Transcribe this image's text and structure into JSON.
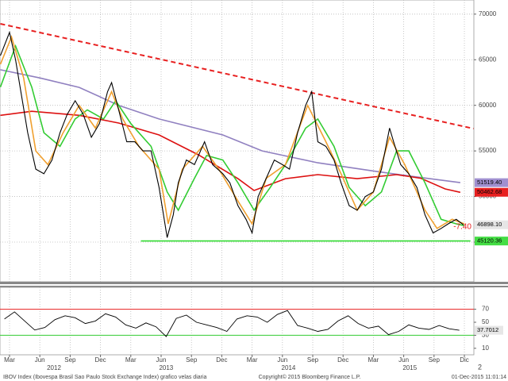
{
  "chart_data": {
    "type": "line",
    "xlim": [
      1.06,
      47.94
    ],
    "xticks": [
      {
        "value": 2,
        "label": "Mar"
      },
      {
        "value": 5,
        "label": "Jun"
      },
      {
        "value": 8,
        "label": "Sep"
      },
      {
        "value": 11,
        "label": "Dec"
      },
      {
        "value": 14,
        "label": "Mar"
      },
      {
        "value": 17,
        "label": "Jun"
      },
      {
        "value": 20,
        "label": "Sep"
      },
      {
        "value": 23,
        "label": "Dec"
      },
      {
        "value": 26,
        "label": "Mar"
      },
      {
        "value": 29,
        "label": "Jun"
      },
      {
        "value": 32,
        "label": "Sep"
      },
      {
        "value": 35,
        "label": "Dec"
      },
      {
        "value": 38,
        "label": "Mar"
      },
      {
        "value": 41,
        "label": "Jun"
      },
      {
        "value": 44,
        "label": "Sep"
      },
      {
        "value": 47,
        "label": "Dic"
      }
    ],
    "years": [
      {
        "value": 6.4,
        "label": "2012"
      },
      {
        "value": 17.5,
        "label": "2013"
      },
      {
        "value": 29.6,
        "label": "2014"
      },
      {
        "value": 41.6,
        "label": "2015"
      }
    ],
    "ylim": [
      40650,
      71550
    ],
    "yticks": [
      45000,
      50000,
      55000,
      60000,
      65000,
      70000
    ],
    "grid": true,
    "series": [
      {
        "color": "#000000",
        "x": [
          1.1,
          2.0,
          2.6,
          3.8,
          4.6,
          5.4,
          6.2,
          7.0,
          7.7,
          8.5,
          9.3,
          10.1,
          10.9,
          11.7,
          12.1,
          12.8,
          13.6,
          14.4,
          15.2,
          16.0,
          16.8,
          17.6,
          18.2,
          18.7,
          19.5,
          20.3,
          21.3,
          22.1,
          23.1,
          23.8,
          24.6,
          25.4,
          26.0,
          26.6,
          27.4,
          28.2,
          29.0,
          29.7,
          30.5,
          31.3,
          31.9,
          32.5,
          33.3,
          34.1,
          34.8,
          35.6,
          36.4,
          37.2,
          38.0,
          38.8,
          39.6,
          40.0,
          40.7,
          41.5,
          42.3,
          43.1,
          43.9,
          44.7,
          45.4,
          46.2,
          46.9
        ],
        "values": [
          65450,
          68000,
          65000,
          57000,
          53000,
          52500,
          54000,
          57000,
          59000,
          60500,
          59000,
          56500,
          58000,
          61500,
          62500,
          59500,
          56000,
          56000,
          55000,
          55000,
          51000,
          45500,
          48000,
          51500,
          54000,
          53500,
          56000,
          53500,
          52500,
          51500,
          49000,
          47500,
          46000,
          50000,
          52000,
          54000,
          53500,
          53000,
          57000,
          60000,
          61500,
          56000,
          55500,
          54000,
          51500,
          49000,
          48500,
          50000,
          50500,
          53000,
          57500,
          56000,
          53500,
          52500,
          51000,
          48000,
          46000,
          46500,
          47000,
          47500,
          46898.1
        ]
      },
      {
        "color": "#f0a030",
        "x": [
          1.1,
          2.2,
          3.4,
          4.6,
          5.8,
          7.3,
          8.9,
          10.5,
          12.1,
          13.2,
          14.8,
          16.8,
          17.7,
          19.1,
          21.1,
          22.7,
          24.6,
          26.0,
          27.4,
          29.3,
          31.5,
          33.3,
          34.8,
          36.4,
          38.0,
          39.6,
          41.1,
          43.1,
          44.3,
          45.8,
          47.0
        ],
        "values": [
          64500,
          67500,
          63000,
          55000,
          53500,
          57000,
          60000,
          57500,
          61500,
          58500,
          55500,
          53000,
          47000,
          53000,
          55500,
          53000,
          49500,
          47000,
          52000,
          53500,
          60000,
          56000,
          52500,
          48500,
          50500,
          56500,
          53500,
          48500,
          46500,
          47500,
          47000
        ]
      },
      {
        "color": "#33cc33",
        "x": [
          1.1,
          2.6,
          4.2,
          5.4,
          7.0,
          8.5,
          9.7,
          11.3,
          12.5,
          14.0,
          16.0,
          17.6,
          18.7,
          20.3,
          21.5,
          23.1,
          24.6,
          26.2,
          27.8,
          29.3,
          31.3,
          32.5,
          34.1,
          35.6,
          37.2,
          38.8,
          40.3,
          41.5,
          43.1,
          44.7,
          46.2,
          47.0
        ],
        "values": [
          62000,
          66500,
          62000,
          57000,
          55500,
          58500,
          59500,
          58500,
          60500,
          58000,
          55500,
          50500,
          48500,
          52000,
          54500,
          54000,
          51500,
          48500,
          51000,
          53500,
          57500,
          58500,
          55500,
          51000,
          49000,
          50500,
          55000,
          55000,
          51500,
          47500,
          47000,
          46800
        ]
      },
      {
        "color": "#dd1111",
        "x": [
          1.1,
          4.2,
          8.9,
          12.8,
          16.8,
          20.7,
          24.6,
          26.2,
          29.3,
          32.5,
          36.4,
          40.3,
          42.7,
          45.1,
          46.6
        ],
        "values": [
          58900,
          59350,
          58900,
          58060,
          56750,
          54570,
          51960,
          50660,
          51960,
          52400,
          51960,
          52400,
          52000,
          50830,
          50462.68
        ]
      },
      {
        "color": "#9080c0",
        "x": [
          1.1,
          5.0,
          8.9,
          12.8,
          16.8,
          23.1,
          27.0,
          32.5,
          38.0,
          41.9,
          46.6
        ],
        "values": [
          63900,
          63000,
          61970,
          60000,
          58500,
          56750,
          55000,
          53700,
          52800,
          52200,
          51519.4
        ]
      }
    ],
    "trendlines": [
      {
        "color": "#e82020",
        "dashed": true,
        "x": [
          1.1,
          47.9
        ],
        "values": [
          68940,
          57450
        ]
      },
      {
        "color": "#33dd33",
        "dashed": false,
        "x": [
          15.0,
          47.6
        ],
        "values": [
          45120.36,
          45120.36
        ]
      }
    ],
    "price_labels": [
      {
        "value": 51519.4,
        "label": "51519.40",
        "color": "#a090d0"
      },
      {
        "value": 50462.68,
        "label": "50462.68",
        "color": "#e82020"
      },
      {
        "value": 46898.1,
        "label": "46898.10",
        "color": "#e6e6e6"
      },
      {
        "value": 45120.36,
        "label": "45120.36",
        "color": "#44dd44"
      }
    ],
    "change_label": {
      "value": -7.4,
      "label": "-7.40"
    },
    "rsi": {
      "ylim": [
        0,
        100
      ],
      "yticks": [
        10,
        30,
        50,
        70
      ],
      "levels": [
        {
          "value": 70,
          "color": "#e82020"
        },
        {
          "value": 30,
          "color": "#33cc33"
        }
      ],
      "color": "#000000",
      "x": [
        1.5,
        2.5,
        3.5,
        4.5,
        5.5,
        6.5,
        7.5,
        8.5,
        9.5,
        10.5,
        11.5,
        12.5,
        13.5,
        14.5,
        15.5,
        16.5,
        17.5,
        18.5,
        19.5,
        20.5,
        21.5,
        22.5,
        23.5,
        24.5,
        25.5,
        26.5,
        27.5,
        28.5,
        29.5,
        30.5,
        31.5,
        32.5,
        33.5,
        34.5,
        35.5,
        36.5,
        37.5,
        38.5,
        39.5,
        40.5,
        41.5,
        42.5,
        43.5,
        44.5,
        45.5,
        46.5
      ],
      "values": [
        55,
        66,
        52,
        38,
        42,
        54,
        60,
        57,
        48,
        52,
        63,
        58,
        46,
        41,
        49,
        43,
        28,
        56,
        61,
        50,
        46,
        42,
        36,
        55,
        60,
        58,
        50,
        62,
        68,
        45,
        41,
        36,
        39,
        52,
        60,
        48,
        41,
        44,
        31,
        36,
        46,
        41,
        39,
        45,
        40,
        37.7012
      ],
      "last_label": "37.7012"
    },
    "footer": {
      "source": "IBOV Index (Ibovespa Brasil Sao Paulo Stock Exchange Index) grafico velas diaria",
      "copyright": "Copyright© 2015 Bloomberg Finance L.P.",
      "timestamp": "01-Dec-2015 11:01:14",
      "page": "2"
    }
  }
}
